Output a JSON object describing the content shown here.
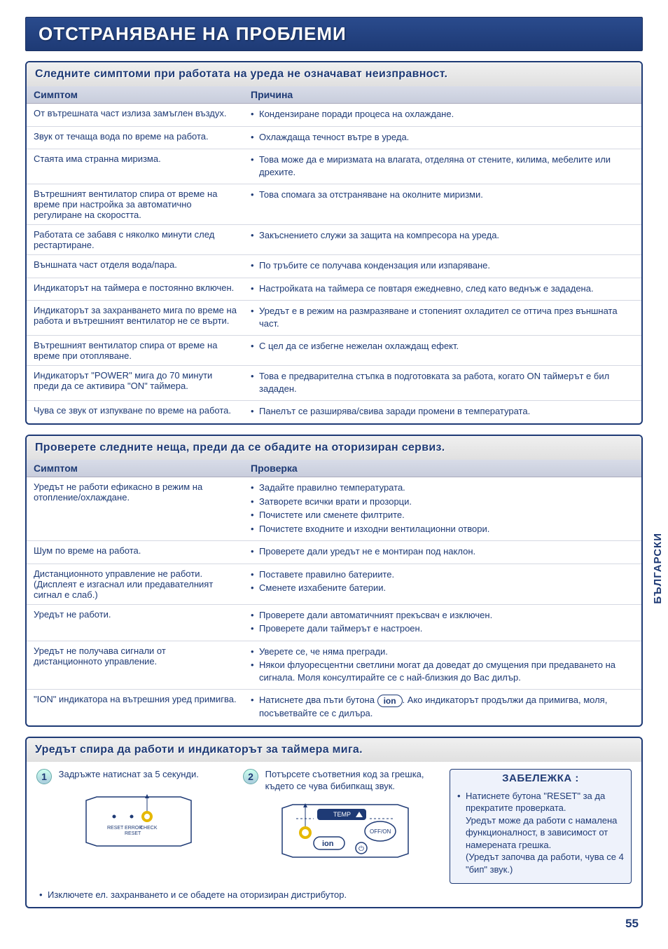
{
  "page_number": "55",
  "side_tab": "БЪЛГАРСКИ",
  "main_title": "ОТСТРАНЯВАНЕ НА ПРОБЛЕМИ",
  "section1": {
    "title": "Следните симптоми при работата на уреда не означават неизправност.",
    "col_symptom": "Симптом",
    "col_cause": "Причина",
    "rows": [
      {
        "symptom": "От вътрешната част излиза замъглен въздух.",
        "causes": [
          "Кондензиране поради процеса на охлаждане."
        ]
      },
      {
        "symptom": "Звук от течаща вода по време на работа.",
        "causes": [
          "Охлаждаща течност вътре в уреда."
        ]
      },
      {
        "symptom": "Стаята има странна миризма.",
        "causes": [
          "Това може да е миризмата на влагата, отделяна от стените, килима, мебелите или дрехите."
        ]
      },
      {
        "symptom": "Вътрешният вентилатор спира от време на време при настройка за автоматично регулиране на скоростта.",
        "causes": [
          "Това спомага за отстраняване на околните миризми."
        ]
      },
      {
        "symptom": "Работата се забавя с няколко минути след рестартиране.",
        "causes": [
          "Закъснението служи за защита на компресора на уреда."
        ]
      },
      {
        "symptom": "Външната част отделя вода/пара.",
        "causes": [
          "По тръбите се получава кондензация или изпаряване."
        ]
      },
      {
        "symptom": "Индикаторът на таймера е постоянно включен.",
        "causes": [
          "Настройката на таймера се повтаря ежедневно, след като веднъж е зададена."
        ]
      },
      {
        "symptom": "Индикаторът за захранването мига по време на работа и вътрешният вентилатор не се върти.",
        "causes": [
          "Уредът е в режим на размразяване и стопеният охладител се оттича през външната част."
        ]
      },
      {
        "symptom": "Вътрешният вентилатор спира от време на време при отопляване.",
        "causes": [
          "С цел да се избегне нежелан охлаждащ ефект."
        ]
      },
      {
        "symptom": "Индикаторът \"POWER\" мига до 70 минути преди да се активира \"ON\" таймера.",
        "causes": [
          "Това е предварителна стъпка в подготовката за работа, когато ON таймерът е бил зададен."
        ]
      },
      {
        "symptom": "Чува се звук от изпукване по време на работа.",
        "causes": [
          "Панелът се разширява/свива заради промени в температурата."
        ]
      }
    ]
  },
  "section2": {
    "title": "Проверете следните неща, преди да се обадите на оторизиран сервиз.",
    "col_symptom": "Симптом",
    "col_check": "Проверка",
    "ion_label": "ion",
    "rows": [
      {
        "symptom": "Уредът не работи ефикасно в режим на отопление/охлаждане.",
        "checks": [
          "Задайте правилно температурата.",
          "Затворете всички врати и прозорци.",
          "Почистете или сменете филтрите.",
          "Почистете входните и изходни вентилационни отвори."
        ]
      },
      {
        "symptom": "Шум по време на работа.",
        "checks": [
          "Проверете дали уредът не е монтиран под наклон."
        ]
      },
      {
        "symptom": "Дистанционното управление не работи. (Дисплеят е изгаснал или предавателният сигнал е слаб.)",
        "checks": [
          "Поставете правилно батериите.",
          "Сменете изхабените батерии."
        ]
      },
      {
        "symptom": "Уредът не работи.",
        "checks": [
          "Проверете дали автоматичният прекъсвач е изключен.",
          "Проверете дали таймерът е настроен."
        ]
      },
      {
        "symptom": "Уредът не получава сигнали от дистанционното управление.",
        "checks": [
          "Уверете се, че няма прегради.",
          "Някои флуоресцентни светлини могат да доведат до смущения при предаването на сигнала. Моля консултирайте се с най-близкия до Вас дилър."
        ]
      },
      {
        "symptom": "\"ION\" индикатора на вътрешния уред примигва.",
        "checks_html": true,
        "checks": [
          "Натиснете два пъти бутона __ION__. Ако индикаторът продължи да примигва, моля, посъветвайте се с дилъра."
        ]
      }
    ]
  },
  "section3": {
    "title": "Уредът спира да работи и индикаторът за таймера мига.",
    "step1_num": "1",
    "step1_text": "Задръжте натиснат за 5 секунди.",
    "step2_num": "2",
    "step2_text": "Потърсете съответния код за грешка, където се чува бибипкащ звук.",
    "remote1": {
      "reset": "RESET",
      "error": "ERROR",
      "check": "CHECK",
      "reset2": "RESET"
    },
    "remote2": {
      "temp": "TEMP",
      "ion": "ion",
      "offon": "OFF/ON",
      "power": "⏻"
    },
    "final_bullet": "Изключете ел. захранването и се обадете на оторизиран дистрибутор.",
    "note": {
      "title": "ЗАБЕЛЕЖКА :",
      "items": [
        "Натиснете бутона \"RESET\" за да прекратите проверката.\nУредът може да работи с намалена функционалност, в зависимост от намерената грешка.\n(Уредът започва да работи, чува се 4 \"бип\" звук.)"
      ]
    }
  }
}
